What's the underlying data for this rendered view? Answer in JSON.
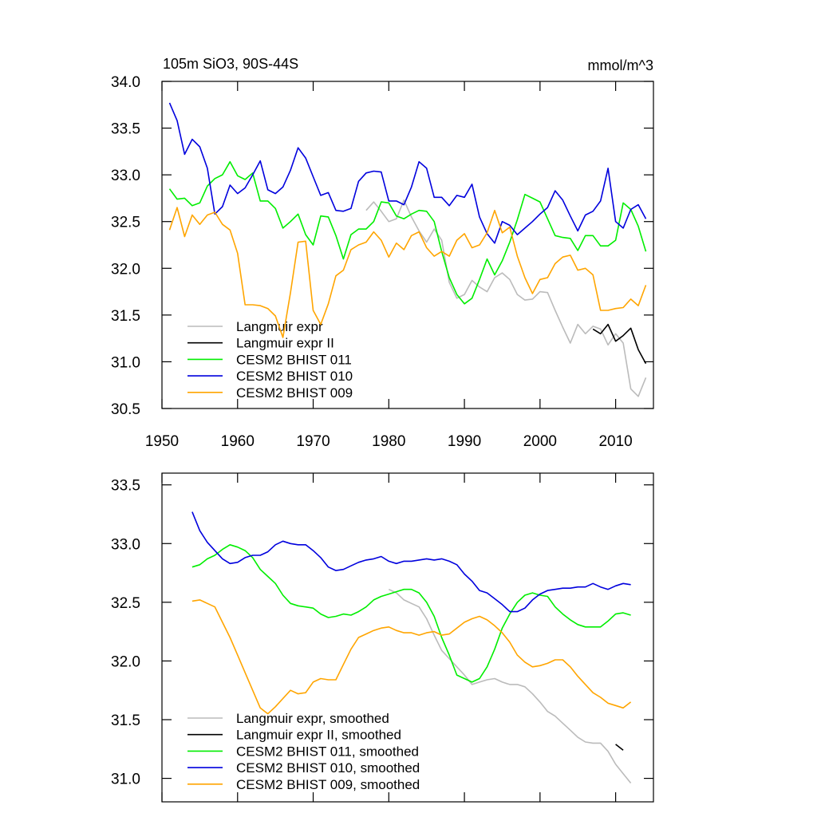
{
  "chart_data": [
    {
      "type": "line",
      "title": "105m SiO3, 90S-44S",
      "units": "mmol/m^3",
      "x": [
        1951,
        1952,
        1953,
        1954,
        1955,
        1956,
        1957,
        1958,
        1959,
        1960,
        1961,
        1962,
        1963,
        1964,
        1965,
        1966,
        1967,
        1968,
        1969,
        1970,
        1971,
        1972,
        1973,
        1974,
        1975,
        1976,
        1977,
        1978,
        1979,
        1980,
        1981,
        1982,
        1983,
        1984,
        1985,
        1986,
        1987,
        1988,
        1989,
        1990,
        1991,
        1992,
        1993,
        1994,
        1995,
        1996,
        1997,
        1998,
        1999,
        2000,
        2001,
        2002,
        2003,
        2004,
        2005,
        2006,
        2007,
        2008,
        2009,
        2010,
        2011,
        2012,
        2013,
        2014
      ],
      "xlim": [
        1950,
        2015
      ],
      "xticks": [
        1950,
        1960,
        1970,
        1980,
        1990,
        2000,
        2010
      ],
      "ylim": [
        30.5,
        34.0
      ],
      "yticks": [
        30.5,
        {
          "value": 31.0,
          "label": "31.0"
        },
        31.5,
        {
          "value": 32.0,
          "label": "32.0"
        },
        32.5,
        {
          "value": 33.0,
          "label": "33.0"
        },
        33.5,
        {
          "value": 34.0,
          "label": "34.0"
        }
      ],
      "series": [
        {
          "name": "Langmuir expr",
          "color": "#bbbbbb",
          "values": [
            null,
            null,
            null,
            null,
            null,
            null,
            null,
            null,
            null,
            null,
            null,
            null,
            null,
            null,
            null,
            null,
            null,
            null,
            null,
            null,
            null,
            null,
            null,
            null,
            null,
            null,
            32.62,
            32.71,
            32.61,
            32.5,
            32.53,
            32.73,
            32.55,
            32.4,
            32.28,
            32.42,
            32.3,
            31.85,
            31.68,
            31.72,
            31.87,
            31.8,
            31.75,
            31.9,
            31.95,
            31.88,
            31.72,
            31.66,
            31.67,
            31.75,
            31.74,
            31.55,
            31.37,
            31.2,
            31.4,
            31.3,
            31.38,
            31.35,
            31.18,
            31.3,
            31.2,
            30.71,
            30.63,
            30.83
          ]
        },
        {
          "name": "Langmuir expr II",
          "color": "#000000",
          "values": [
            null,
            null,
            null,
            null,
            null,
            null,
            null,
            null,
            null,
            null,
            null,
            null,
            null,
            null,
            null,
            null,
            null,
            null,
            null,
            null,
            null,
            null,
            null,
            null,
            null,
            null,
            null,
            null,
            null,
            null,
            null,
            null,
            null,
            null,
            null,
            null,
            null,
            null,
            null,
            null,
            null,
            null,
            null,
            null,
            null,
            null,
            null,
            null,
            null,
            null,
            null,
            null,
            null,
            null,
            null,
            null,
            31.35,
            31.3,
            31.4,
            31.22,
            31.28,
            31.36,
            31.13,
            30.98
          ]
        },
        {
          "name": "CESM2 BHIST 011",
          "color": "#00ee00",
          "values": [
            32.85,
            32.74,
            32.75,
            32.67,
            32.7,
            32.88,
            32.96,
            33.0,
            33.14,
            32.99,
            32.95,
            33.02,
            32.72,
            32.72,
            32.64,
            32.43,
            32.5,
            32.58,
            32.36,
            32.25,
            32.56,
            32.55,
            32.35,
            32.1,
            32.36,
            32.42,
            32.42,
            32.5,
            32.71,
            32.7,
            32.56,
            32.53,
            32.58,
            32.62,
            32.61,
            32.5,
            32.18,
            31.9,
            31.72,
            31.62,
            31.68,
            31.88,
            32.1,
            31.93,
            32.08,
            32.28,
            32.52,
            32.79,
            32.75,
            32.71,
            32.53,
            32.35,
            32.33,
            32.32,
            32.19,
            32.35,
            32.35,
            32.24,
            32.24,
            32.3,
            32.7,
            32.63,
            32.45,
            32.18
          ]
        },
        {
          "name": "CESM2 BHIST 010",
          "color": "#0000dd",
          "values": [
            33.77,
            33.58,
            33.22,
            33.38,
            33.3,
            33.07,
            32.58,
            32.66,
            32.89,
            32.8,
            32.86,
            33.0,
            33.15,
            32.84,
            32.8,
            32.87,
            33.05,
            33.29,
            33.18,
            32.98,
            32.78,
            32.81,
            32.62,
            32.61,
            32.64,
            32.93,
            33.02,
            33.04,
            33.03,
            32.72,
            32.72,
            32.68,
            32.87,
            33.14,
            33.07,
            32.76,
            32.76,
            32.67,
            32.78,
            32.76,
            32.9,
            32.55,
            32.37,
            32.27,
            32.5,
            32.46,
            32.36,
            32.43,
            32.5,
            32.58,
            32.65,
            32.83,
            32.73,
            32.56,
            32.4,
            32.57,
            32.61,
            32.72,
            33.07,
            32.5,
            32.43,
            32.63,
            32.68,
            32.53
          ]
        },
        {
          "name": "CESM2 BHIST 009",
          "color": "#ffa500",
          "values": [
            32.41,
            32.65,
            32.34,
            32.57,
            32.47,
            32.57,
            32.6,
            32.47,
            32.41,
            32.16,
            31.61,
            31.61,
            31.6,
            31.57,
            31.49,
            31.26,
            31.74,
            32.28,
            32.29,
            31.55,
            31.4,
            31.62,
            31.92,
            31.98,
            32.2,
            32.25,
            32.28,
            32.39,
            32.3,
            32.12,
            32.27,
            32.2,
            32.35,
            32.39,
            32.22,
            32.13,
            32.18,
            32.13,
            32.3,
            32.37,
            32.22,
            32.25,
            32.38,
            32.62,
            32.38,
            32.44,
            32.13,
            31.9,
            31.73,
            31.88,
            31.9,
            32.05,
            32.12,
            32.14,
            31.98,
            32.0,
            31.93,
            31.55,
            31.55,
            31.57,
            31.58,
            31.67,
            31.6,
            31.82
          ]
        }
      ]
    },
    {
      "type": "line",
      "x": [
        1951,
        1952,
        1953,
        1954,
        1955,
        1956,
        1957,
        1958,
        1959,
        1960,
        1961,
        1962,
        1963,
        1964,
        1965,
        1966,
        1967,
        1968,
        1969,
        1970,
        1971,
        1972,
        1973,
        1974,
        1975,
        1976,
        1977,
        1978,
        1979,
        1980,
        1981,
        1982,
        1983,
        1984,
        1985,
        1986,
        1987,
        1988,
        1989,
        1990,
        1991,
        1992,
        1993,
        1994,
        1995,
        1996,
        1997,
        1998,
        1999,
        2000,
        2001,
        2002,
        2003,
        2004,
        2005,
        2006,
        2007,
        2008,
        2009,
        2010,
        2011,
        2012,
        2013,
        2014
      ],
      "xlim": [
        1950,
        2015
      ],
      "xticks": [
        1950,
        1960,
        1970,
        1980,
        1990,
        2000,
        2010
      ],
      "ylim": [
        30.8,
        33.6
      ],
      "yticks": [
        {
          "value": 31.0,
          "label": "31.0"
        },
        31.5,
        {
          "value": 32.0,
          "label": "32.0"
        },
        32.5,
        {
          "value": 33.0,
          "label": "33.0"
        },
        33.5
      ],
      "series": [
        {
          "name": "Langmuir expr, smoothed",
          "color": "#bbbbbb",
          "values": [
            null,
            null,
            null,
            null,
            null,
            null,
            null,
            null,
            null,
            null,
            null,
            null,
            null,
            null,
            null,
            null,
            null,
            null,
            null,
            null,
            null,
            null,
            null,
            null,
            null,
            null,
            null,
            null,
            null,
            32.61,
            32.58,
            32.52,
            32.49,
            32.46,
            32.36,
            32.22,
            32.09,
            32.02,
            31.95,
            31.88,
            31.8,
            31.82,
            31.84,
            31.85,
            31.82,
            31.8,
            31.8,
            31.78,
            31.72,
            31.65,
            31.57,
            31.53,
            31.47,
            31.41,
            31.35,
            31.31,
            31.3,
            31.3,
            31.23,
            31.12,
            31.04,
            30.96,
            null,
            null
          ]
        },
        {
          "name": "Langmuir expr II, smoothed",
          "color": "#000000",
          "values": [
            null,
            null,
            null,
            null,
            null,
            null,
            null,
            null,
            null,
            null,
            null,
            null,
            null,
            null,
            null,
            null,
            null,
            null,
            null,
            null,
            null,
            null,
            null,
            null,
            null,
            null,
            null,
            null,
            null,
            null,
            null,
            null,
            null,
            null,
            null,
            null,
            null,
            null,
            null,
            null,
            null,
            null,
            null,
            null,
            null,
            null,
            null,
            null,
            null,
            null,
            null,
            null,
            null,
            null,
            null,
            null,
            null,
            null,
            null,
            31.29,
            31.24,
            null,
            null,
            null
          ]
        },
        {
          "name": "CESM2 BHIST 011, smoothed",
          "color": "#00ee00",
          "values": [
            null,
            null,
            null,
            32.8,
            32.82,
            32.87,
            32.9,
            32.95,
            32.99,
            32.97,
            32.94,
            32.88,
            32.78,
            32.72,
            32.66,
            32.56,
            32.49,
            32.47,
            32.46,
            32.45,
            32.4,
            32.37,
            32.38,
            32.4,
            32.39,
            32.42,
            32.46,
            32.52,
            32.55,
            32.57,
            32.59,
            32.61,
            32.61,
            32.58,
            32.5,
            32.38,
            32.2,
            32.05,
            31.88,
            31.85,
            31.82,
            31.85,
            31.95,
            32.1,
            32.28,
            32.4,
            32.5,
            32.56,
            32.58,
            32.56,
            32.55,
            32.46,
            32.4,
            32.35,
            32.31,
            32.29,
            32.29,
            32.29,
            32.34,
            32.4,
            32.41,
            32.39,
            null,
            null
          ]
        },
        {
          "name": "CESM2 BHIST 010, smoothed",
          "color": "#0000dd",
          "values": [
            null,
            null,
            null,
            33.27,
            33.11,
            33.01,
            32.94,
            32.87,
            32.83,
            32.84,
            32.88,
            32.9,
            32.9,
            32.93,
            32.99,
            33.02,
            33.0,
            32.99,
            32.99,
            32.94,
            32.88,
            32.8,
            32.77,
            32.78,
            32.81,
            32.84,
            32.86,
            32.87,
            32.89,
            32.85,
            32.83,
            32.85,
            32.85,
            32.86,
            32.87,
            32.86,
            32.87,
            32.85,
            32.82,
            32.74,
            32.68,
            32.6,
            32.58,
            32.53,
            32.48,
            32.42,
            32.42,
            32.45,
            32.52,
            32.57,
            32.6,
            32.61,
            32.62,
            32.62,
            32.63,
            32.63,
            32.66,
            32.63,
            32.61,
            32.64,
            32.66,
            32.65,
            null,
            null
          ]
        },
        {
          "name": "CESM2 BHIST 009, smoothed",
          "color": "#ffa500",
          "values": [
            null,
            null,
            null,
            32.51,
            32.52,
            32.49,
            32.46,
            32.33,
            32.2,
            32.05,
            31.9,
            31.75,
            31.6,
            31.55,
            31.61,
            31.68,
            31.75,
            31.72,
            31.73,
            31.82,
            31.85,
            31.84,
            31.84,
            31.97,
            32.1,
            32.2,
            32.23,
            32.26,
            32.28,
            32.29,
            32.26,
            32.24,
            32.24,
            32.22,
            32.24,
            32.25,
            32.22,
            32.23,
            32.28,
            32.33,
            32.36,
            32.38,
            32.35,
            32.3,
            32.24,
            32.16,
            32.05,
            31.99,
            31.95,
            31.96,
            31.98,
            32.01,
            32.01,
            31.95,
            31.87,
            31.8,
            31.73,
            31.69,
            31.64,
            31.62,
            31.6,
            31.65,
            null,
            null
          ]
        }
      ]
    }
  ]
}
